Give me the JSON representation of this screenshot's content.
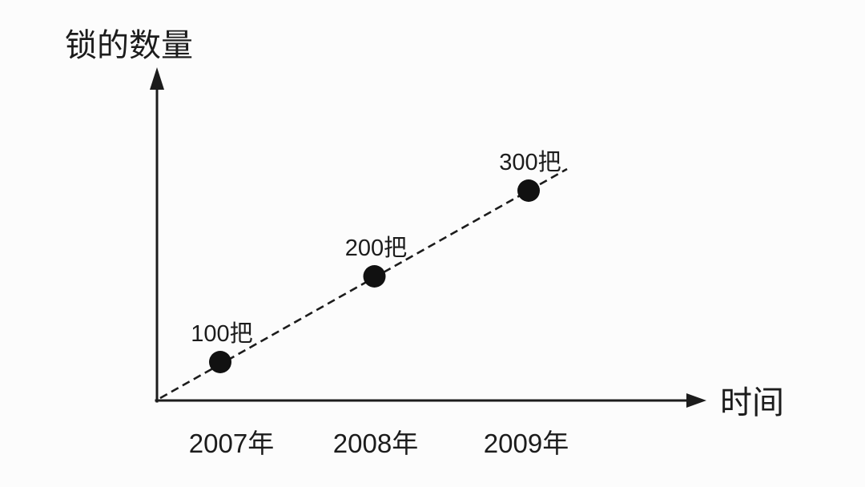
{
  "chart_data": {
    "type": "scatter",
    "title": "",
    "xlabel": "时间",
    "ylabel": "锁的数量",
    "points": [
      {
        "x_label": "2007年",
        "year": 2007,
        "value": 100,
        "label": "100把"
      },
      {
        "x_label": "2008年",
        "year": 2008,
        "value": 200,
        "label": "200把"
      },
      {
        "x_label": "2009年",
        "year": 2009,
        "value": 300,
        "label": "300把"
      }
    ],
    "trendline": {
      "style": "dashed",
      "from_origin": true
    },
    "grid": false,
    "legend": "none",
    "axis_ranges": {
      "x_categories": [
        "2007年",
        "2008年",
        "2009年"
      ],
      "y_implied": [
        0,
        300
      ]
    },
    "colors": {
      "ink": "#1c1c1c",
      "point_fill": "#111111",
      "background": "#fcfcfc"
    }
  }
}
